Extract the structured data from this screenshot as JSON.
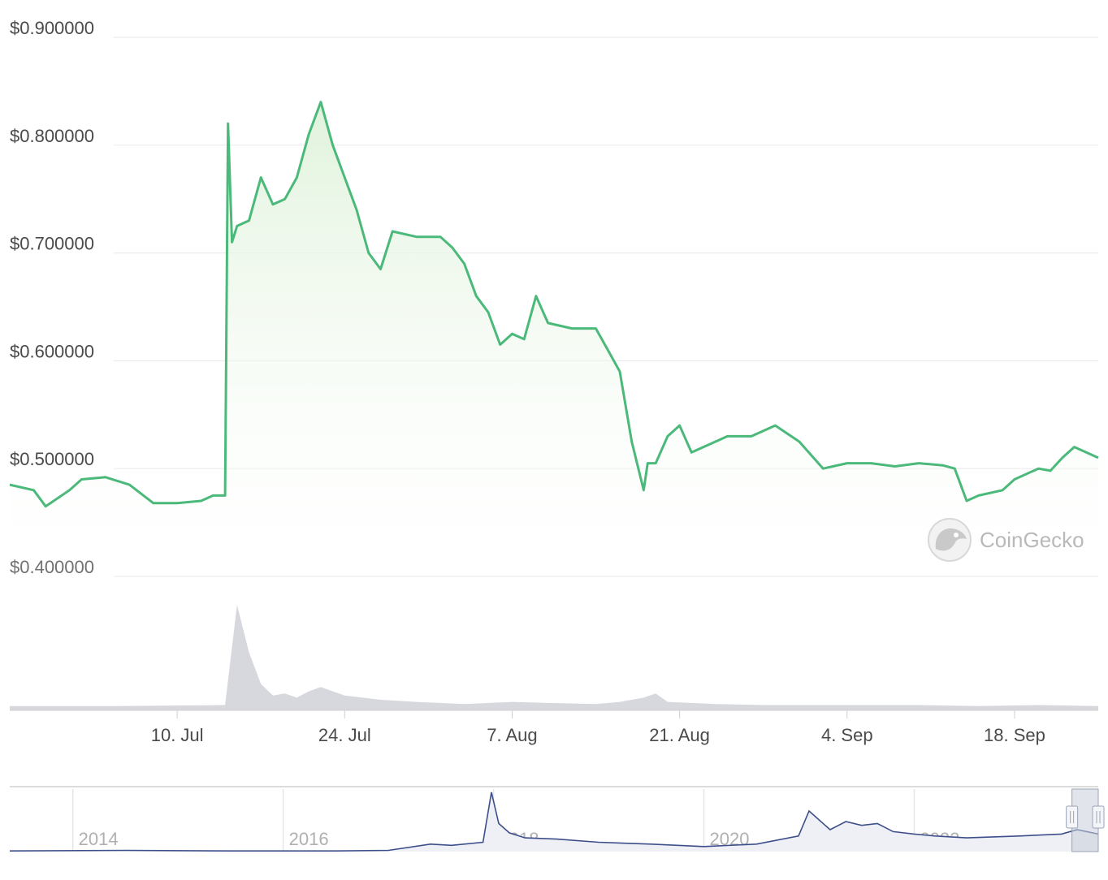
{
  "watermark": {
    "text": "CoinGecko",
    "icon": "gecko-logo-icon"
  },
  "colors": {
    "price_line": "#4bb97a",
    "price_fill_top": "#dff2da",
    "volume_fill": "#d6d8dd",
    "grid": "#ececec",
    "navigator_line": "#3d4f8a",
    "navigator_handle": "#c8cdd8"
  },
  "chart_data": [
    {
      "type": "line",
      "title": "",
      "xlabel": "",
      "ylabel": "",
      "y_tick_labels": [
        "$0.900000",
        "$0.800000",
        "$0.700000",
        "$0.600000",
        "$0.500000",
        "$0.400000"
      ],
      "y_ticks": [
        0.9,
        0.8,
        0.7,
        0.6,
        0.5,
        0.4
      ],
      "ylim": [
        0.4,
        0.9
      ],
      "x_tick_labels": [
        "10. Jul",
        "24. Jul",
        "7. Aug",
        "21. Aug",
        "4. Sep",
        "18. Sep"
      ],
      "x_ticks": [
        "2023-07-10",
        "2023-07-24",
        "2023-08-07",
        "2023-08-21",
        "2023-09-04",
        "2023-09-18"
      ],
      "xlim": [
        "2023-06-26",
        "2023-09-25"
      ],
      "grid": true,
      "area_fill": true,
      "series": [
        {
          "x": [
            "2023-06-26",
            "2023-06-28",
            "2023-06-29",
            "2023-07-01",
            "2023-07-02",
            "2023-07-04",
            "2023-07-06",
            "2023-07-08",
            "2023-07-10",
            "2023-07-12",
            "2023-07-13",
            "2023-07-14",
            "2023-07-14 06:00",
            "2023-07-14 14:00",
            "2023-07-15",
            "2023-07-16",
            "2023-07-17",
            "2023-07-18",
            "2023-07-19",
            "2023-07-20",
            "2023-07-21",
            "2023-07-22",
            "2023-07-23",
            "2023-07-24",
            "2023-07-25",
            "2023-07-26",
            "2023-07-27",
            "2023-07-28",
            "2023-07-30",
            "2023-08-01",
            "2023-08-02",
            "2023-08-03",
            "2023-08-04",
            "2023-08-05",
            "2023-08-06",
            "2023-08-07",
            "2023-08-08",
            "2023-08-09",
            "2023-08-10",
            "2023-08-12",
            "2023-08-14",
            "2023-08-15",
            "2023-08-16",
            "2023-08-17",
            "2023-08-18",
            "2023-08-18 08:00",
            "2023-08-19",
            "2023-08-20",
            "2023-08-21",
            "2023-08-22",
            "2023-08-24",
            "2023-08-25",
            "2023-08-27",
            "2023-08-29",
            "2023-08-31",
            "2023-09-02",
            "2023-09-04",
            "2023-09-06",
            "2023-09-08",
            "2023-09-10",
            "2023-09-12",
            "2023-09-13",
            "2023-09-14",
            "2023-09-15",
            "2023-09-17",
            "2023-09-18",
            "2023-09-20",
            "2023-09-21",
            "2023-09-22",
            "2023-09-23",
            "2023-09-25"
          ],
          "y": [
            0.485,
            0.48,
            0.465,
            0.48,
            0.49,
            0.492,
            0.485,
            0.468,
            0.468,
            0.47,
            0.475,
            0.475,
            0.82,
            0.71,
            0.725,
            0.73,
            0.77,
            0.745,
            0.75,
            0.77,
            0.81,
            0.84,
            0.8,
            0.77,
            0.74,
            0.7,
            0.685,
            0.72,
            0.715,
            0.715,
            0.705,
            0.69,
            0.66,
            0.645,
            0.615,
            0.625,
            0.62,
            0.66,
            0.635,
            0.63,
            0.63,
            0.61,
            0.59,
            0.525,
            0.48,
            0.505,
            0.505,
            0.53,
            0.54,
            0.515,
            0.525,
            0.53,
            0.53,
            0.54,
            0.525,
            0.5,
            0.505,
            0.505,
            0.502,
            0.505,
            0.503,
            0.5,
            0.47,
            0.475,
            0.48,
            0.49,
            0.5,
            0.498,
            0.51,
            0.52,
            0.51
          ]
        }
      ]
    },
    {
      "type": "area",
      "title": "",
      "xlabel": "",
      "ylabel": "",
      "xlim": [
        "2023-06-26",
        "2023-09-25"
      ],
      "ylim": [
        0,
        100
      ],
      "series": [
        {
          "x": [
            "2023-06-26",
            "2023-07-05",
            "2023-07-14",
            "2023-07-15",
            "2023-07-16",
            "2023-07-17",
            "2023-07-18",
            "2023-07-19",
            "2023-07-20",
            "2023-07-21",
            "2023-07-22",
            "2023-07-24",
            "2023-07-27",
            "2023-07-30",
            "2023-08-03",
            "2023-08-07",
            "2023-08-10",
            "2023-08-14",
            "2023-08-16",
            "2023-08-18",
            "2023-08-19",
            "2023-08-20",
            "2023-08-24",
            "2023-08-28",
            "2023-09-01",
            "2023-09-05",
            "2023-09-10",
            "2023-09-15",
            "2023-09-20",
            "2023-09-25"
          ],
          "y": [
            4,
            4,
            5,
            100,
            55,
            25,
            14,
            16,
            12,
            18,
            22,
            14,
            10,
            8,
            6,
            8,
            7,
            6,
            8,
            12,
            16,
            8,
            6,
            5,
            5,
            5,
            5,
            4,
            5,
            4
          ]
        }
      ]
    },
    {
      "type": "line",
      "title": "",
      "xlabel": "",
      "ylabel": "",
      "x_tick_labels": [
        "2014",
        "2016",
        "2018",
        "2020",
        "2022"
      ],
      "x_ticks": [
        2014,
        2016,
        2018,
        2020,
        2022
      ],
      "xlim": [
        2013.4,
        2023.75
      ],
      "ylim": [
        0,
        1
      ],
      "selected_range": [
        2023.5,
        2023.75
      ],
      "series": [
        {
          "x": [
            2013.4,
            2014.5,
            2015.5,
            2016.5,
            2017.0,
            2017.4,
            2017.6,
            2017.9,
            2017.98,
            2018.05,
            2018.15,
            2018.3,
            2018.6,
            2019.0,
            2019.5,
            2020.0,
            2020.5,
            2020.9,
            2021.0,
            2021.2,
            2021.35,
            2021.5,
            2021.65,
            2021.8,
            2022.0,
            2022.2,
            2022.5,
            2023.0,
            2023.4,
            2023.55,
            2023.75
          ],
          "y": [
            0.01,
            0.02,
            0.01,
            0.01,
            0.02,
            0.12,
            0.1,
            0.15,
            0.95,
            0.45,
            0.3,
            0.22,
            0.2,
            0.15,
            0.12,
            0.08,
            0.12,
            0.25,
            0.65,
            0.35,
            0.48,
            0.42,
            0.45,
            0.32,
            0.28,
            0.25,
            0.22,
            0.25,
            0.28,
            0.35,
            0.28
          ]
        }
      ]
    }
  ]
}
